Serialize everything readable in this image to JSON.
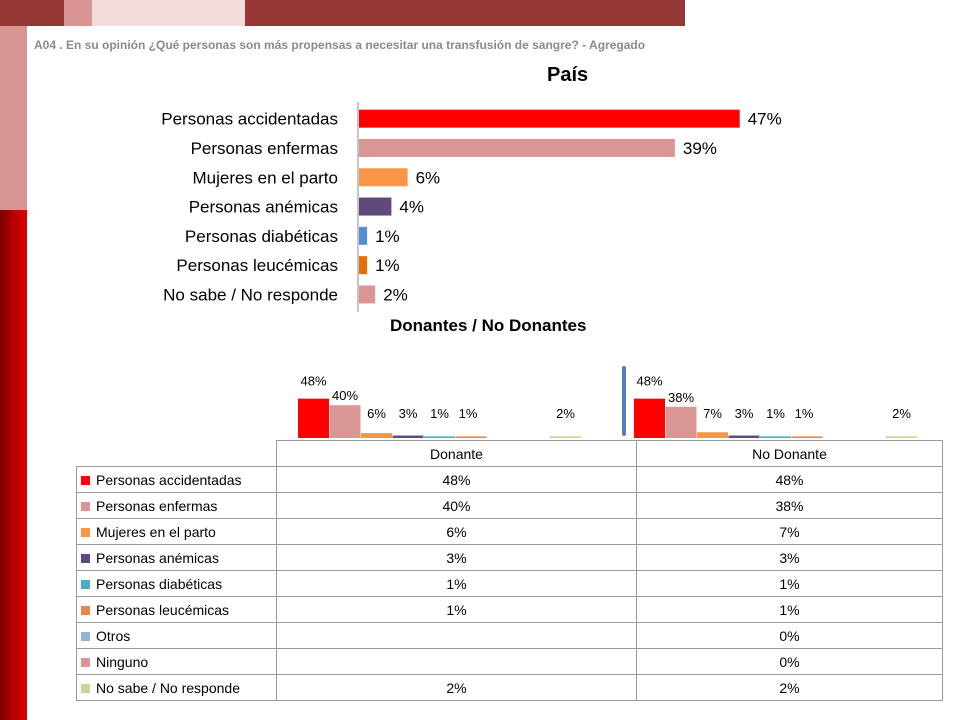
{
  "question": "A04 . En su opinión ¿Qué personas son más propensas a necesitar una transfusión de sangre? - Agregado",
  "colors": {
    "pale_pink": "#f2dcdb",
    "dark_red": "#953735",
    "side_pink": "#d99594",
    "red": "#ff0000",
    "pink": "#d99694",
    "orange": "#f79646",
    "purple": "#604a7b",
    "blue": "#558ed5",
    "dark_orange": "#e46c0a",
    "teal": "#4bacc6",
    "light_blue": "#95b3d7",
    "light_green": "#c3d69b",
    "mid_orange": "#e6874b",
    "separator": "#4f81bd"
  },
  "chart_data": [
    {
      "type": "bar",
      "orientation": "horizontal",
      "title": "País",
      "categories": [
        "Personas accidentadas",
        "Personas enfermas",
        "Mujeres en el parto",
        "Personas anémicas",
        "Personas diabéticas",
        "Personas leucémicas",
        "No sabe / No responde"
      ],
      "values": [
        47,
        39,
        6,
        4,
        1,
        1,
        2
      ],
      "value_labels": [
        "47%",
        "39%",
        "6%",
        "4%",
        "1%",
        "1%",
        "2%"
      ],
      "bar_colors": [
        "red",
        "pink",
        "orange",
        "purple",
        "blue",
        "dark_orange",
        "pink"
      ],
      "xlim": [
        0,
        100
      ]
    },
    {
      "type": "bar",
      "title": "Donantes / No Donantes",
      "groups": [
        "Donante",
        "No Donante"
      ],
      "series": [
        {
          "name": "Personas accidentadas",
          "color": "red",
          "values": [
            48,
            48
          ],
          "labels": [
            "48%",
            "48%"
          ]
        },
        {
          "name": "Personas enfermas",
          "color": "pink",
          "values": [
            40,
            38
          ],
          "labels": [
            "40%",
            "38%"
          ]
        },
        {
          "name": "Mujeres en el parto",
          "color": "orange",
          "values": [
            6,
            7
          ],
          "labels": [
            "6%",
            "7%"
          ]
        },
        {
          "name": "Personas anémicas",
          "color": "purple",
          "values": [
            3,
            3
          ],
          "labels": [
            "3%",
            "3%"
          ]
        },
        {
          "name": "Personas diabéticas",
          "color": "teal",
          "values": [
            1,
            1
          ],
          "labels": [
            "1%",
            "1%"
          ]
        },
        {
          "name": "Personas leucémicas",
          "color": "mid_orange",
          "values": [
            1,
            1
          ],
          "labels": [
            "1%",
            "1%"
          ]
        },
        {
          "name": "Otros",
          "color": "light_blue",
          "values": [
            null,
            0
          ],
          "labels": [
            "",
            "0%"
          ]
        },
        {
          "name": "Ninguno",
          "color": "pink",
          "values": [
            null,
            0
          ],
          "labels": [
            "",
            "0%"
          ]
        },
        {
          "name": "No sabe / No responde",
          "color": "light_green",
          "values": [
            2,
            2
          ],
          "labels": [
            "2%",
            "2%"
          ]
        }
      ],
      "ylim": [
        0,
        100
      ],
      "table": {
        "headers": [
          "Donante",
          "No Donante"
        ],
        "rows": [
          {
            "label": "Personas accidentadas",
            "color": "red",
            "values": [
              "48%",
              "48%"
            ]
          },
          {
            "label": "Personas enfermas",
            "color": "pink",
            "values": [
              "40%",
              "38%"
            ]
          },
          {
            "label": "Mujeres en el parto",
            "color": "orange",
            "values": [
              "6%",
              "7%"
            ]
          },
          {
            "label": "Personas anémicas",
            "color": "purple",
            "values": [
              "3%",
              "3%"
            ]
          },
          {
            "label": "Personas diabéticas",
            "color": "teal",
            "values": [
              "1%",
              "1%"
            ]
          },
          {
            "label": "Personas leucémicas",
            "color": "mid_orange",
            "values": [
              "1%",
              "1%"
            ]
          },
          {
            "label": "Otros",
            "color": "light_blue",
            "values": [
              "",
              "0%"
            ]
          },
          {
            "label": "Ninguno",
            "color": "pink",
            "values": [
              "",
              "0%"
            ]
          },
          {
            "label": "No sabe / No responde",
            "color": "light_green",
            "values": [
              "2%",
              "2%"
            ]
          }
        ]
      }
    }
  ]
}
